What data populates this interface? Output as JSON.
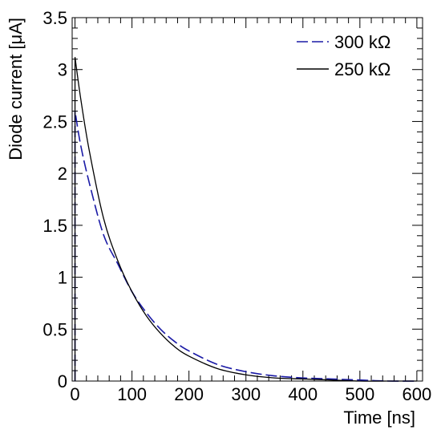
{
  "chart_data": {
    "type": "line",
    "xlabel": "Time [ns]",
    "ylabel": "Diode current [μA]",
    "xlim": [
      -5,
      610
    ],
    "ylim": [
      0,
      3.5
    ],
    "x_ticks": [
      "0",
      "100",
      "200",
      "300",
      "400",
      "500",
      "600"
    ],
    "y_ticks": [
      "0",
      "0.5",
      "1",
      "1.5",
      "2",
      "2.5",
      "3",
      "3.5"
    ],
    "grid": false,
    "legend_position": "top-right",
    "series": [
      {
        "name": "300 kΩ",
        "color": "#1a1aa6",
        "style": "dashed",
        "x": [
          0,
          0,
          10,
          25,
          50,
          75,
          100,
          125,
          150,
          175,
          200,
          250,
          300,
          350,
          400,
          450,
          500,
          550,
          600
        ],
        "y": [
          0,
          2.6,
          2.27,
          1.91,
          1.41,
          1.13,
          0.86,
          0.66,
          0.5,
          0.38,
          0.29,
          0.16,
          0.09,
          0.05,
          0.03,
          0.02,
          0.01,
          0.0,
          0.0
        ]
      },
      {
        "name": "250 kΩ",
        "color": "#000000",
        "style": "solid",
        "x": [
          0,
          0,
          10,
          25,
          50,
          75,
          100,
          125,
          150,
          175,
          200,
          250,
          300,
          350,
          400,
          450,
          500,
          550,
          600
        ],
        "y": [
          0,
          3.12,
          2.72,
          2.22,
          1.57,
          1.16,
          0.86,
          0.63,
          0.46,
          0.33,
          0.24,
          0.12,
          0.06,
          0.03,
          0.02,
          0.01,
          0.0,
          0.0,
          0.0
        ]
      }
    ]
  }
}
